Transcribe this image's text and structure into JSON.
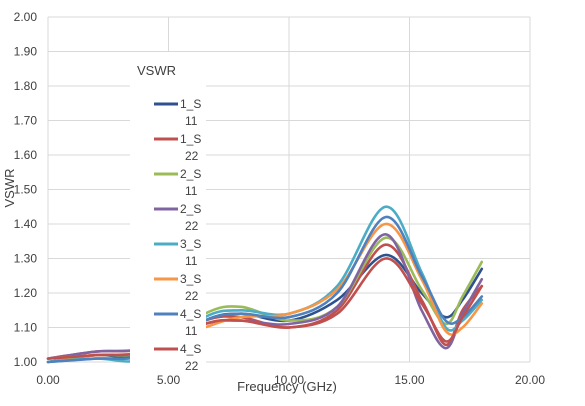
{
  "chart_data": {
    "type": "line",
    "title": "",
    "ylabel": "VSWR",
    "xlabel": "Frequency (GHz)",
    "xlim": [
      0,
      20
    ],
    "ylim": [
      1.0,
      2.0
    ],
    "grid": true,
    "legend_position": "left, inside plot",
    "legend_title": "VSWR",
    "x_tick_labels": [
      "0.00",
      "5.00",
      "10.00",
      "15.00",
      "20.00"
    ],
    "y_tick_labels": [
      "1.00",
      "1.10",
      "1.20",
      "1.30",
      "1.40",
      "1.50",
      "1.60",
      "1.70",
      "1.80",
      "1.90",
      "2.00"
    ],
    "series": [
      {
        "name": "1_S11",
        "legend_lines": [
          "1_S",
          "11"
        ],
        "color": "#2f528f",
        "x": [
          0.0,
          2.0,
          4.0,
          6.5,
          8.0,
          10.0,
          12.0,
          14.0,
          15.5,
          16.5,
          17.2,
          18.0
        ],
        "y": [
          1.0,
          1.02,
          1.02,
          1.12,
          1.14,
          1.12,
          1.18,
          1.31,
          1.2,
          1.13,
          1.18,
          1.27
        ]
      },
      {
        "name": "1_S22",
        "legend_lines": [
          "1_S",
          "22"
        ],
        "color": "#c0504d",
        "x": [
          0.0,
          2.0,
          4.0,
          6.5,
          8.0,
          10.0,
          12.0,
          14.0,
          15.5,
          16.5,
          17.2,
          18.0
        ],
        "y": [
          1.01,
          1.03,
          1.04,
          1.12,
          1.13,
          1.1,
          1.15,
          1.34,
          1.18,
          1.05,
          1.15,
          1.22
        ]
      },
      {
        "name": "2_S11",
        "legend_lines": [
          "2_S",
          "11"
        ],
        "color": "#9bbb59",
        "x": [
          0.0,
          2.0,
          4.0,
          6.5,
          8.0,
          10.0,
          12.0,
          14.0,
          15.5,
          16.5,
          17.2,
          18.0
        ],
        "y": [
          1.0,
          1.02,
          1.03,
          1.14,
          1.16,
          1.12,
          1.16,
          1.36,
          1.21,
          1.11,
          1.19,
          1.29
        ]
      },
      {
        "name": "2_S22",
        "legend_lines": [
          "2_S",
          "22"
        ],
        "color": "#8064a2",
        "x": [
          0.0,
          2.0,
          4.0,
          6.5,
          8.0,
          10.0,
          12.0,
          14.0,
          15.5,
          16.5,
          17.2,
          18.0
        ],
        "y": [
          1.01,
          1.03,
          1.04,
          1.11,
          1.12,
          1.11,
          1.16,
          1.37,
          1.15,
          1.04,
          1.14,
          1.24
        ]
      },
      {
        "name": "3_S11",
        "legend_lines": [
          "3_S",
          "11"
        ],
        "color": "#4bacc6",
        "x": [
          0.0,
          2.0,
          4.0,
          6.5,
          8.0,
          10.0,
          12.0,
          14.0,
          15.5,
          16.5,
          17.2,
          18.0
        ],
        "y": [
          1.0,
          1.01,
          1.01,
          1.13,
          1.15,
          1.14,
          1.22,
          1.45,
          1.26,
          1.1,
          1.12,
          1.18
        ]
      },
      {
        "name": "3_S22",
        "legend_lines": [
          "3_S",
          "22"
        ],
        "color": "#f79646",
        "x": [
          0.0,
          2.0,
          4.0,
          6.5,
          8.0,
          10.0,
          12.0,
          14.0,
          15.5,
          16.5,
          17.2,
          18.0
        ],
        "y": [
          1.01,
          1.02,
          1.03,
          1.1,
          1.13,
          1.14,
          1.21,
          1.4,
          1.24,
          1.09,
          1.1,
          1.17
        ]
      },
      {
        "name": "4_S11",
        "legend_lines": [
          "4_S",
          "11"
        ],
        "color": "#4f81bd",
        "x": [
          0.0,
          2.0,
          4.0,
          6.5,
          8.0,
          10.0,
          12.0,
          14.0,
          15.5,
          16.5,
          17.2,
          18.0
        ],
        "y": [
          1.0,
          1.01,
          1.02,
          1.12,
          1.14,
          1.13,
          1.2,
          1.42,
          1.25,
          1.12,
          1.13,
          1.19
        ]
      },
      {
        "name": "4_S22",
        "legend_lines": [
          "4_S",
          "22"
        ],
        "color": "#c0504d",
        "x": [
          0.0,
          2.0,
          4.0,
          6.5,
          8.0,
          10.0,
          12.0,
          14.0,
          15.5,
          16.5,
          17.2,
          18.0
        ],
        "y": [
          1.01,
          1.02,
          1.03,
          1.11,
          1.12,
          1.1,
          1.14,
          1.3,
          1.17,
          1.06,
          1.13,
          1.22
        ]
      }
    ]
  }
}
